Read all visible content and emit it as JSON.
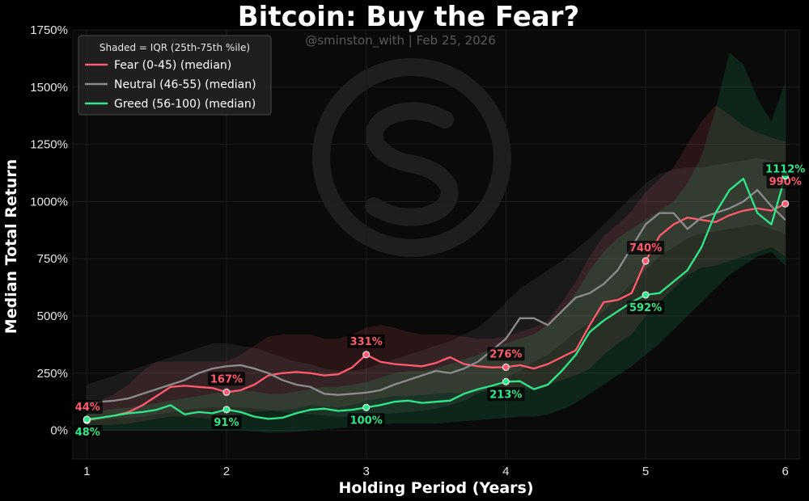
{
  "chart_data": {
    "type": "line",
    "title": "Bitcoin: Buy the Fear?",
    "subtitle": "@sminston_with  |  Feb 25, 2026",
    "xlabel": "Holding Period (Years)",
    "ylabel": "Median Total Return",
    "xlim": [
      0.9,
      6.1
    ],
    "ylim": [
      -125,
      1750
    ],
    "x_ticks": [
      1,
      2,
      3,
      4,
      5,
      6
    ],
    "x_tick_labels": [
      "1",
      "2",
      "3",
      "4",
      "5",
      "6"
    ],
    "y_ticks": [
      0,
      250,
      500,
      750,
      1000,
      1250,
      1500,
      1750
    ],
    "y_tick_labels": [
      "0%",
      "250%",
      "500%",
      "750%",
      "1000%",
      "1250%",
      "1500%",
      "1750%"
    ],
    "grid": true,
    "legend": {
      "title": "Shaded = IQR (25th-75th %ile)",
      "placement": "top-left",
      "entries": [
        "Fear (0-45)  (median)",
        "Neutral (46-55)  (median)",
        "Greed (56-100)  (median)"
      ]
    },
    "x": [
      1.0,
      1.1,
      1.2,
      1.3,
      1.4,
      1.5,
      1.6,
      1.7,
      1.8,
      1.9,
      2.0,
      2.1,
      2.2,
      2.3,
      2.4,
      2.5,
      2.6,
      2.7,
      2.8,
      2.9,
      3.0,
      3.1,
      3.2,
      3.3,
      3.4,
      3.5,
      3.6,
      3.7,
      3.8,
      3.9,
      4.0,
      4.1,
      4.2,
      4.3,
      4.4,
      4.5,
      4.6,
      4.7,
      4.8,
      4.9,
      5.0,
      5.1,
      5.2,
      5.3,
      5.4,
      5.5,
      5.6,
      5.7,
      5.8,
      5.9,
      6.0
    ],
    "series": [
      {
        "name": "Fear (0-45)  (median)",
        "color": "#ff5a6e",
        "median": [
          44,
          55,
          65,
          80,
          110,
          150,
          190,
          195,
          190,
          185,
          167,
          175,
          200,
          240,
          250,
          255,
          250,
          240,
          245,
          275,
          331,
          300,
          290,
          285,
          280,
          295,
          320,
          290,
          280,
          275,
          276,
          285,
          270,
          290,
          320,
          350,
          460,
          560,
          570,
          600,
          740,
          850,
          900,
          930,
          920,
          910,
          940,
          960,
          970,
          960,
          990
        ],
        "q1": [
          20,
          22,
          25,
          30,
          40,
          50,
          60,
          60,
          55,
          50,
          60,
          70,
          80,
          85,
          90,
          95,
          110,
          105,
          100,
          110,
          130,
          140,
          150,
          150,
          155,
          160,
          165,
          160,
          170,
          175,
          180,
          185,
          180,
          200,
          220,
          240,
          270,
          330,
          380,
          420,
          500,
          560,
          620,
          680,
          710,
          720,
          740,
          760,
          780,
          800,
          760
        ],
        "q3": [
          110,
          130,
          160,
          200,
          260,
          300,
          300,
          300,
          300,
          300,
          300,
          330,
          370,
          410,
          420,
          420,
          420,
          400,
          400,
          420,
          450,
          460,
          450,
          430,
          420,
          420,
          420,
          410,
          400,
          400,
          410,
          430,
          450,
          480,
          560,
          650,
          760,
          850,
          900,
          960,
          1040,
          1100,
          1150,
          1250,
          1350,
          1420,
          1380,
          1330,
          1300,
          1280,
          1260
        ],
        "highlights": [
          {
            "x": 1,
            "value": 44,
            "label": "44%"
          },
          {
            "x": 2,
            "value": 167,
            "label": "167%"
          },
          {
            "x": 3,
            "value": 331,
            "label": "331%"
          },
          {
            "x": 4,
            "value": 276,
            "label": "276%"
          },
          {
            "x": 5,
            "value": 740,
            "label": "740%"
          },
          {
            "x": 6,
            "value": 990,
            "label": "990%"
          }
        ]
      },
      {
        "name": "Neutral (46-55)  (median)",
        "color": "#8c8c8c",
        "median": [
          120,
          125,
          130,
          140,
          160,
          180,
          200,
          220,
          250,
          270,
          280,
          285,
          270,
          250,
          220,
          200,
          190,
          160,
          155,
          160,
          165,
          175,
          200,
          220,
          240,
          260,
          250,
          270,
          300,
          350,
          400,
          490,
          490,
          460,
          520,
          580,
          600,
          640,
          700,
          800,
          900,
          950,
          950,
          880,
          930,
          950,
          970,
          1000,
          1050,
          980,
          920
        ],
        "q1": [
          40,
          45,
          50,
          55,
          60,
          70,
          80,
          90,
          95,
          100,
          100,
          100,
          95,
          90,
          80,
          75,
          70,
          65,
          60,
          60,
          65,
          70,
          75,
          80,
          85,
          95,
          110,
          130,
          160,
          190,
          230,
          260,
          300,
          330,
          380,
          430,
          470,
          520,
          580,
          640,
          700,
          760,
          800,
          840,
          860,
          870,
          880,
          890,
          900,
          880,
          860
        ],
        "q3": [
          200,
          220,
          240,
          260,
          280,
          300,
          320,
          340,
          360,
          380,
          380,
          370,
          360,
          340,
          320,
          300,
          290,
          270,
          260,
          260,
          270,
          290,
          310,
          330,
          350,
          370,
          390,
          420,
          450,
          500,
          560,
          620,
          660,
          700,
          740,
          790,
          840,
          900,
          960,
          1020,
          1080,
          1120,
          1140,
          1150,
          1150,
          1160,
          1170,
          1180,
          1190,
          1180,
          1170
        ]
      },
      {
        "name": "Greed (56-100)  (median)",
        "color": "#2ee88a",
        "median": [
          48,
          55,
          65,
          75,
          80,
          90,
          110,
          70,
          80,
          75,
          91,
          80,
          60,
          50,
          55,
          75,
          90,
          95,
          85,
          90,
          100,
          110,
          125,
          130,
          120,
          125,
          130,
          160,
          180,
          195,
          213,
          215,
          180,
          200,
          260,
          330,
          430,
          480,
          520,
          560,
          592,
          600,
          650,
          700,
          800,
          950,
          1050,
          1100,
          950,
          900,
          1112
        ],
        "q1": [
          0,
          0,
          0,
          0,
          0,
          0,
          0,
          0,
          0,
          0,
          0,
          0,
          -5,
          -10,
          -10,
          -5,
          0,
          5,
          10,
          15,
          20,
          25,
          30,
          30,
          30,
          30,
          35,
          40,
          45,
          50,
          55,
          60,
          60,
          70,
          90,
          120,
          160,
          200,
          240,
          280,
          330,
          380,
          440,
          500,
          560,
          620,
          680,
          720,
          760,
          780,
          720
        ],
        "q3": [
          80,
          85,
          95,
          100,
          110,
          120,
          130,
          140,
          150,
          160,
          170,
          175,
          170,
          160,
          160,
          170,
          180,
          190,
          190,
          200,
          210,
          230,
          250,
          260,
          260,
          270,
          290,
          310,
          330,
          360,
          380,
          400,
          420,
          460,
          520,
          600,
          700,
          780,
          840,
          880,
          920,
          960,
          1000,
          1080,
          1200,
          1400,
          1650,
          1600,
          1450,
          1350,
          1520
        ],
        "highlights": [
          {
            "x": 1,
            "value": 48,
            "label": "48%"
          },
          {
            "x": 2,
            "value": 91,
            "label": "91%"
          },
          {
            "x": 3,
            "value": 100,
            "label": "100%"
          },
          {
            "x": 4,
            "value": 213,
            "label": "213%"
          },
          {
            "x": 5,
            "value": 592,
            "label": "592%"
          },
          {
            "x": 6,
            "value": 1112,
            "label": "1112%"
          }
        ]
      }
    ]
  }
}
